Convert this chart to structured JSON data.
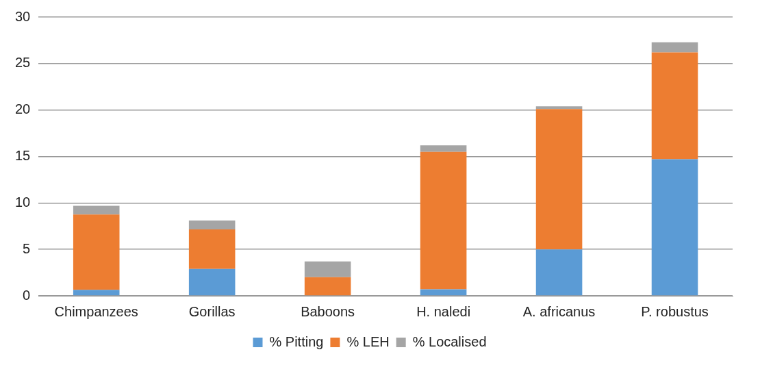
{
  "chart_data": {
    "type": "bar",
    "stacked": true,
    "categories": [
      "Chimpanzees",
      "Gorillas",
      "Baboons",
      "H. naledi",
      "A. africanus",
      "P. robustus"
    ],
    "series": [
      {
        "name": "% Pitting",
        "color": "#5b9bd5",
        "values": [
          0.65,
          2.9,
          0,
          0.7,
          5.0,
          14.7
        ]
      },
      {
        "name": "% LEH",
        "color": "#ed7d31",
        "values": [
          8.1,
          4.25,
          2.0,
          14.8,
          15.1,
          11.5
        ]
      },
      {
        "name": "% Localised",
        "color": "#a5a5a5",
        "values": [
          0.95,
          0.95,
          1.7,
          0.7,
          0.3,
          1.1
        ]
      }
    ],
    "ylim": [
      0,
      30
    ],
    "yticks": [
      0,
      5,
      10,
      15,
      20,
      25,
      30
    ],
    "grid": "y",
    "legend": "bottom"
  }
}
